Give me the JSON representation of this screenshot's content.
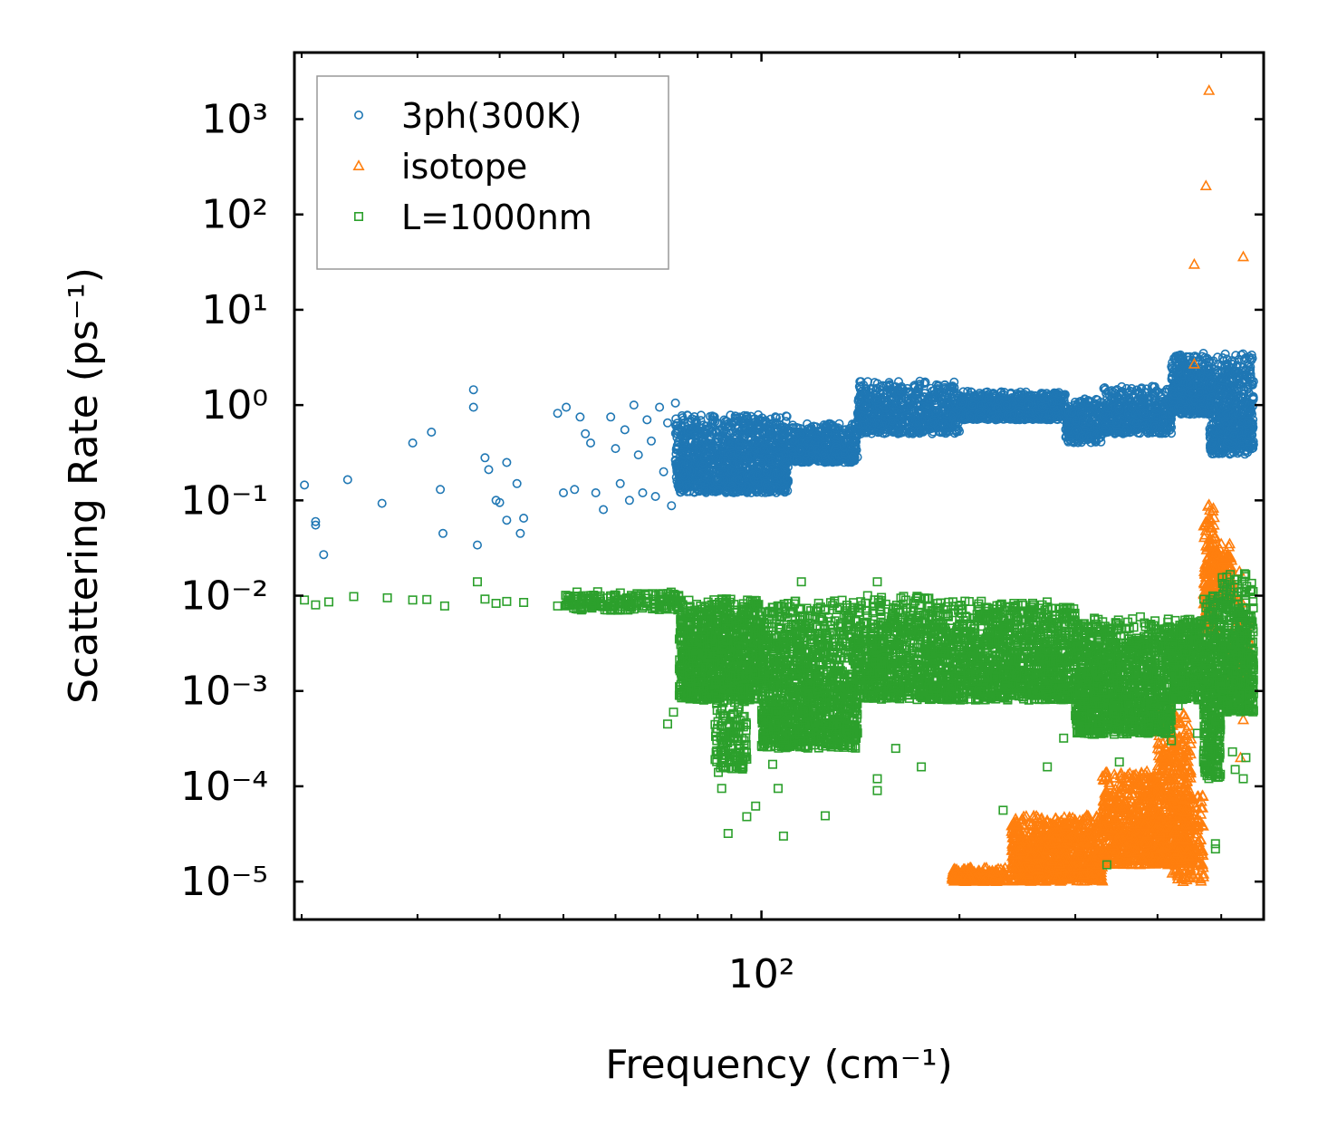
{
  "chart_data": {
    "type": "scatter",
    "xscale": "log",
    "yscale": "log",
    "xlabel": "Frequency (cm⁻¹)",
    "ylabel": "Scattering Rate (ps⁻¹)",
    "xlim": [
      19.5,
      580
    ],
    "ylim": [
      4e-06,
      5000
    ],
    "xticks": [
      {
        "value": 100,
        "label": "10²"
      }
    ],
    "yticks": [
      {
        "value": 1e-05,
        "label": "10⁻⁵"
      },
      {
        "value": 0.0001,
        "label": "10⁻⁴"
      },
      {
        "value": 0.001,
        "label": "10⁻³"
      },
      {
        "value": 0.01,
        "label": "10⁻²"
      },
      {
        "value": 0.1,
        "label": "10⁻¹"
      },
      {
        "value": 1,
        "label": "10⁰"
      },
      {
        "value": 10,
        "label": "10¹"
      },
      {
        "value": 100,
        "label": "10²"
      },
      {
        "value": 1000,
        "label": "10³"
      }
    ],
    "legend_position": "top-left",
    "series": [
      {
        "name": "3ph(300K)",
        "marker": "circle",
        "color": "#1f77b4",
        "points": [
          [
            20.2,
            0.145
          ],
          [
            21.0,
            0.06
          ],
          [
            21.0,
            0.055
          ],
          [
            21.6,
            0.027
          ],
          [
            23.5,
            0.165
          ],
          [
            26.5,
            0.093
          ],
          [
            29.5,
            0.4
          ],
          [
            31.5,
            0.52
          ],
          [
            32.5,
            0.13
          ],
          [
            32.8,
            0.045
          ],
          [
            36.5,
            1.45
          ],
          [
            36.5,
            0.95
          ],
          [
            37.0,
            0.034
          ],
          [
            38.0,
            0.28
          ],
          [
            38.5,
            0.21
          ],
          [
            39.5,
            0.1
          ],
          [
            40.0,
            0.095
          ],
          [
            41.0,
            0.062
          ],
          [
            41.0,
            0.25
          ],
          [
            42.5,
            0.15
          ],
          [
            43.0,
            0.045
          ],
          [
            43.5,
            0.065
          ],
          [
            49.0,
            0.82
          ],
          [
            50.5,
            0.95
          ],
          [
            50.0,
            0.12
          ],
          [
            52.0,
            0.13
          ],
          [
            53.0,
            0.75
          ],
          [
            54.0,
            0.5
          ],
          [
            55.0,
            0.4
          ],
          [
            56.0,
            0.12
          ],
          [
            57.5,
            0.08
          ],
          [
            59.0,
            0.75
          ],
          [
            60.0,
            0.35
          ],
          [
            61.0,
            0.15
          ],
          [
            62.0,
            0.55
          ],
          [
            63.0,
            0.1
          ],
          [
            64.0,
            1.0
          ],
          [
            65.0,
            0.3
          ],
          [
            66.0,
            0.12
          ],
          [
            67.0,
            0.7
          ],
          [
            68.0,
            0.42
          ],
          [
            69.0,
            0.11
          ],
          [
            70.0,
            0.95
          ],
          [
            71.0,
            0.2
          ],
          [
            72.0,
            0.65
          ],
          [
            73.0,
            0.088
          ],
          [
            74.0,
            1.05
          ],
          [
            75.0,
            0.15
          ]
        ],
        "bands": [
          {
            "x": [
              74,
              110
            ],
            "y": [
              0.12,
              0.8
            ],
            "count": 1300
          },
          {
            "x": [
              110,
              140
            ],
            "y": [
              0.25,
              0.65
            ],
            "count": 500
          },
          {
            "x": [
              140,
              200
            ],
            "y": [
              0.5,
              1.8
            ],
            "count": 700
          },
          {
            "x": [
              200,
              290
            ],
            "y": [
              0.7,
              1.4
            ],
            "count": 700
          },
          {
            "x": [
              290,
              330
            ],
            "y": [
              0.4,
              1.2
            ],
            "count": 300
          },
          {
            "x": [
              330,
              420
            ],
            "y": [
              0.5,
              1.6
            ],
            "count": 500
          },
          {
            "x": [
              420,
              480
            ],
            "y": [
              0.8,
              3.5
            ],
            "count": 450
          },
          {
            "x": [
              480,
              560
            ],
            "y": [
              0.3,
              3.5
            ],
            "count": 600
          }
        ]
      },
      {
        "name": "isotope",
        "marker": "triangle",
        "color": "#ff7f0e",
        "points": [
          [
            479,
            2000
          ],
          [
            474,
            200
          ],
          [
            455,
            30
          ],
          [
            540,
            36
          ],
          [
            455,
            2.7
          ],
          [
            479,
            0.09
          ],
          [
            500,
            0.035
          ],
          [
            515,
            0.035
          ],
          [
            533,
            0.018
          ],
          [
            540,
            0.0009
          ],
          [
            540,
            0.0005
          ],
          [
            535,
            0.0002
          ],
          [
            430,
            1.2e-05
          ],
          [
            470,
            1.2e-05
          ],
          [
            465,
            2.2e-05
          ],
          [
            248,
            2.1e-05
          ]
        ],
        "bands": [
          {
            "x": [
              195,
              235
            ],
            "y": [
              1e-05,
              1.4e-05
            ],
            "count": 200
          },
          {
            "x": [
              240,
              330
            ],
            "y": [
              1e-05,
              5e-05
            ],
            "count": 900
          },
          {
            "x": [
              330,
              400
            ],
            "y": [
              1.5e-05,
              0.00015
            ],
            "count": 600
          },
          {
            "x": [
              400,
              450
            ],
            "y": [
              1.5e-05,
              0.0007
            ],
            "count": 500
          },
          {
            "x": [
              420,
              470
            ],
            "y": [
              1e-05,
              0.0001
            ],
            "count": 200
          },
          {
            "x": [
              470,
              490
            ],
            "y": [
              0.004,
              0.09
            ],
            "count": 160
          },
          {
            "x": [
              490,
              520
            ],
            "y": [
              0.01,
              0.035
            ],
            "count": 130
          },
          {
            "x": [
              520,
              550
            ],
            "y": [
              0.001,
              0.01
            ],
            "count": 80
          }
        ]
      },
      {
        "name": "L=1000nm",
        "marker": "square",
        "color": "#2ca02c",
        "points": [
          [
            20.2,
            0.009
          ],
          [
            21.0,
            0.008
          ],
          [
            22.0,
            0.0086
          ],
          [
            24.0,
            0.0098
          ],
          [
            27.0,
            0.0095
          ],
          [
            29.5,
            0.009
          ],
          [
            31.0,
            0.0091
          ],
          [
            33.0,
            0.0078
          ],
          [
            37.0,
            0.014
          ],
          [
            38.0,
            0.0092
          ],
          [
            39.5,
            0.0083
          ],
          [
            41.0,
            0.0087
          ],
          [
            43.5,
            0.0085
          ],
          [
            49.0,
            0.0078
          ],
          [
            51.0,
            0.0082
          ],
          [
            53.0,
            0.0075
          ],
          [
            55.0,
            0.0088
          ],
          [
            57.0,
            0.0081
          ],
          [
            59.0,
            0.0072
          ],
          [
            61.0,
            0.0085
          ],
          [
            63.0,
            0.0078
          ],
          [
            65.0,
            0.0094
          ],
          [
            67.0,
            0.0083
          ],
          [
            69.0,
            0.0076
          ],
          [
            71.0,
            0.009
          ],
          [
            73.0,
            0.0085
          ],
          [
            72.0,
            0.00045
          ],
          [
            73.5,
            0.0006
          ],
          [
            75.0,
            0.0009
          ],
          [
            86.0,
            0.00014
          ],
          [
            87.0,
            9.5e-05
          ],
          [
            89.0,
            3.2e-05
          ],
          [
            91.0,
            0.00033
          ],
          [
            95.0,
            4.8e-05
          ],
          [
            98.0,
            6.2e-05
          ],
          [
            104.0,
            0.00017
          ],
          [
            106.0,
            9.5e-05
          ],
          [
            108.0,
            3e-05
          ],
          [
            112.0,
            0.00027
          ],
          [
            118.0,
            0.00032
          ],
          [
            125.0,
            4.9e-05
          ],
          [
            130.0,
            0.00042
          ],
          [
            150.0,
            0.00012
          ],
          [
            150.0,
            9e-05
          ],
          [
            160.0,
            0.00025
          ],
          [
            175.0,
            0.00016
          ],
          [
            233.0,
            5.6e-05
          ],
          [
            272.0,
            0.00016
          ],
          [
            288.0,
            0.00032
          ],
          [
            300.0,
            0.00055
          ],
          [
            350.0,
            0.00018
          ],
          [
            335.0,
            1.5e-05
          ],
          [
            420.0,
            0.0003
          ],
          [
            430.0,
            0.0007
          ],
          [
            460.0,
            0.00036
          ],
          [
            470.0,
            0.00018
          ],
          [
            475.0,
            0.00015
          ],
          [
            490.0,
            2.5e-05
          ],
          [
            490.0,
            2.2e-05
          ],
          [
            520.0,
            0.00023
          ],
          [
            525.0,
            0.00015
          ],
          [
            540.0,
            0.00012
          ],
          [
            545.0,
            0.0002
          ],
          [
            115.0,
            0.014
          ],
          [
            145.0,
            0.01
          ],
          [
            150.0,
            0.014
          ]
        ],
        "bands": [
          {
            "x": [
              50,
              75
            ],
            "y": [
              0.007,
              0.011
            ],
            "count": 180
          },
          {
            "x": [
              75,
              100
            ],
            "y": [
              0.0008,
              0.01
            ],
            "count": 1000
          },
          {
            "x": [
              85,
              95
            ],
            "y": [
              0.00015,
              0.001
            ],
            "count": 150
          },
          {
            "x": [
              100,
              140
            ],
            "y": [
              0.00025,
              0.009
            ],
            "count": 1200
          },
          {
            "x": [
              140,
              180
            ],
            "y": [
              0.0008,
              0.01
            ],
            "count": 600
          },
          {
            "x": [
              180,
              300
            ],
            "y": [
              0.0008,
              0.009
            ],
            "count": 1300
          },
          {
            "x": [
              300,
              360
            ],
            "y": [
              0.00035,
              0.006
            ],
            "count": 700
          },
          {
            "x": [
              360,
              420
            ],
            "y": [
              0.00035,
              0.006
            ],
            "count": 500
          },
          {
            "x": [
              420,
              470
            ],
            "y": [
              0.0008,
              0.006
            ],
            "count": 350
          },
          {
            "x": [
              470,
              500
            ],
            "y": [
              0.00012,
              0.012
            ],
            "count": 350
          },
          {
            "x": [
              500,
              560
            ],
            "y": [
              0.0006,
              0.018
            ],
            "count": 450
          }
        ]
      }
    ]
  }
}
